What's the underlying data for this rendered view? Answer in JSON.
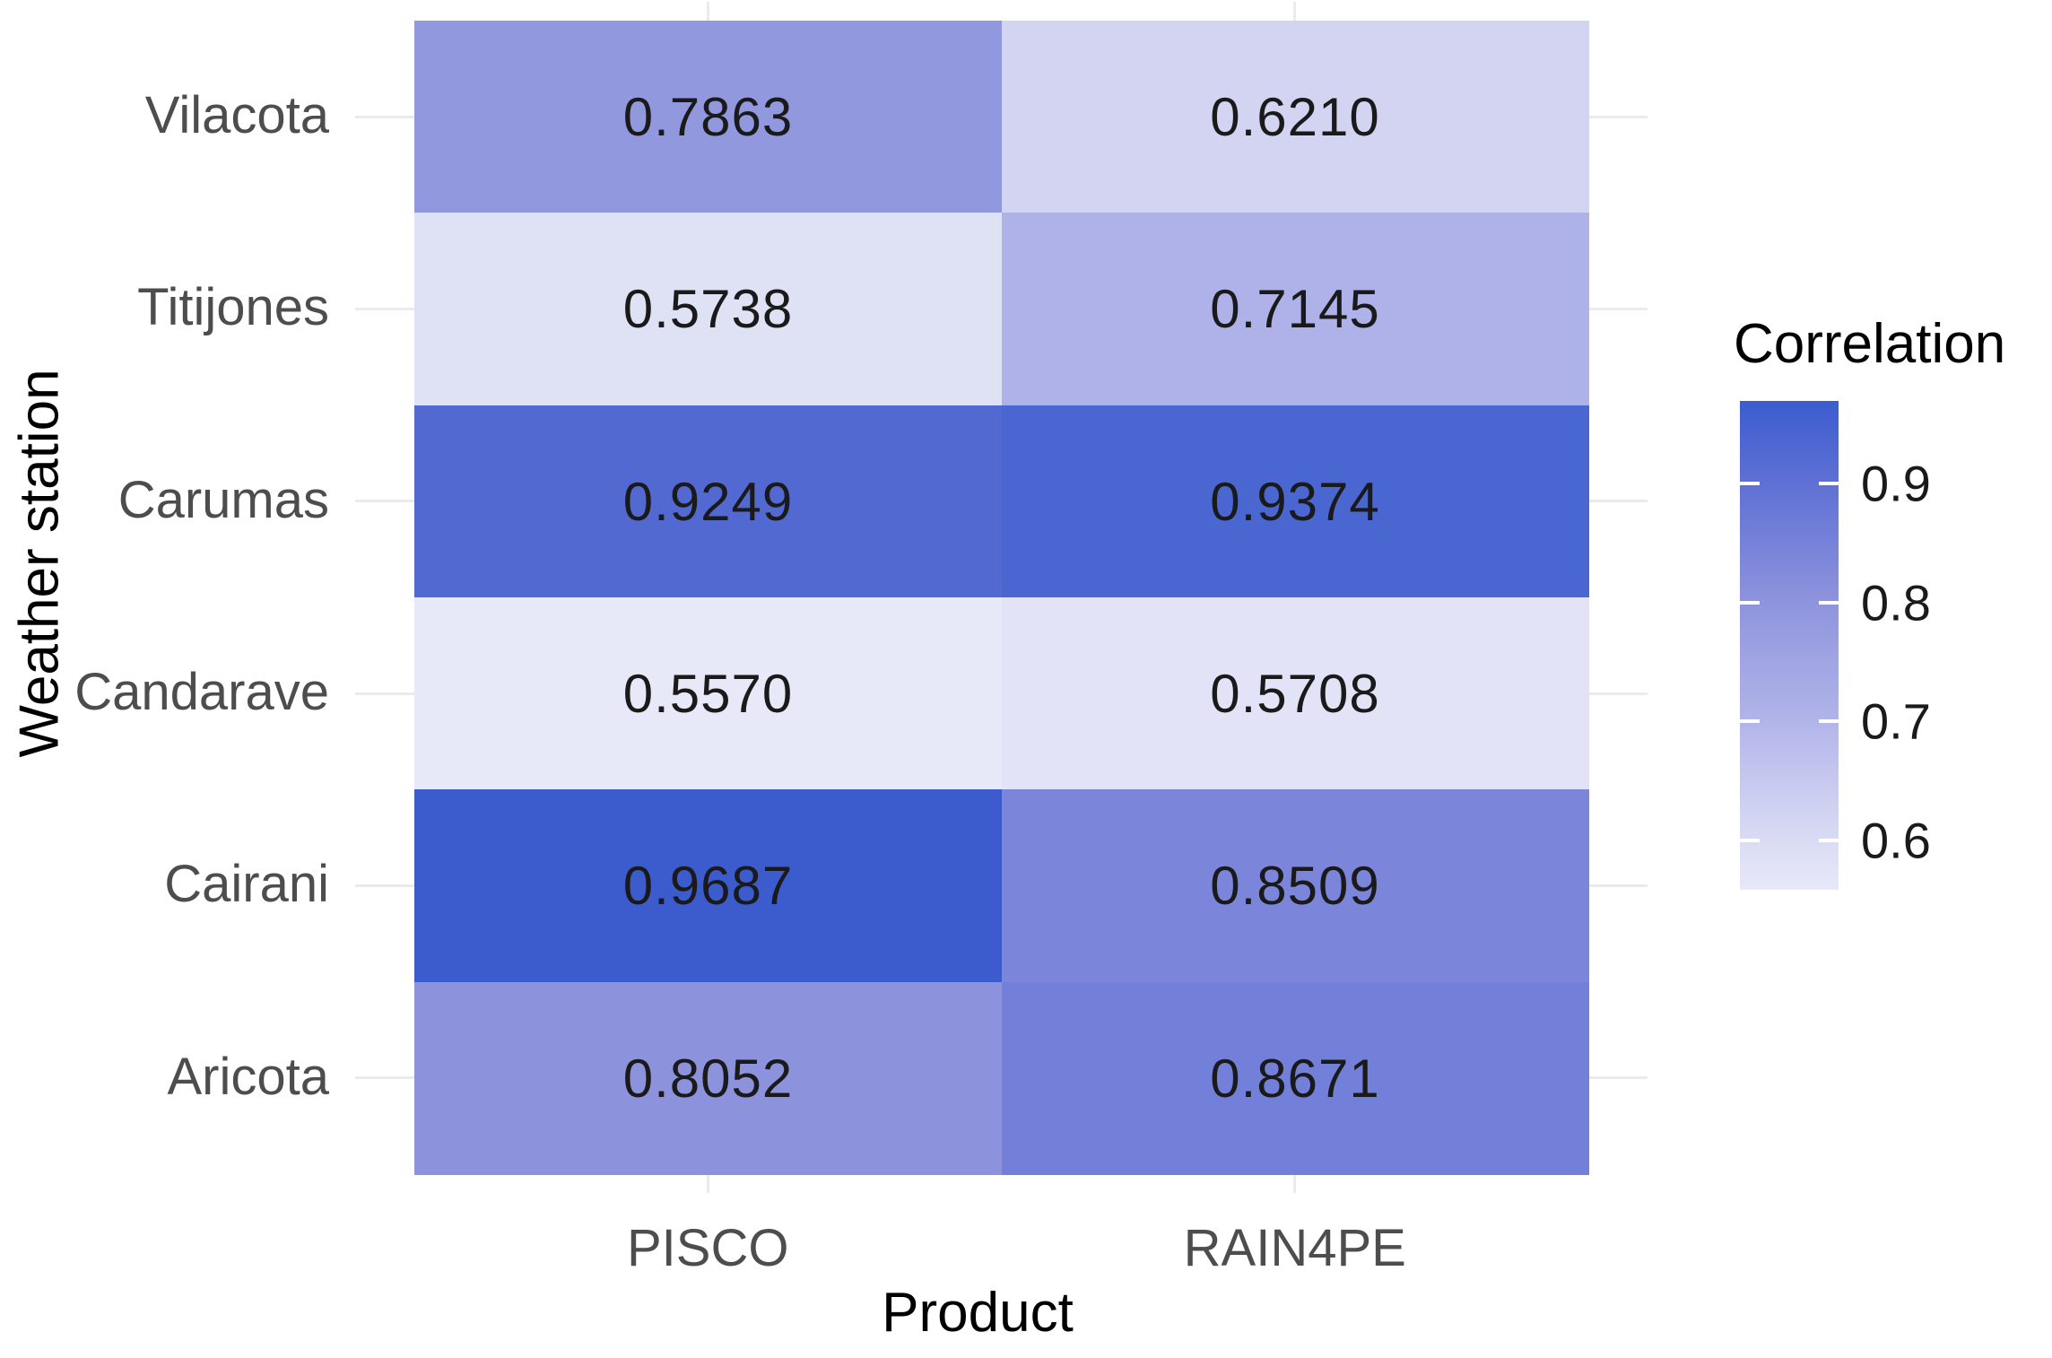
{
  "chart_data": {
    "type": "heatmap",
    "title": "",
    "xlabel": "Product",
    "ylabel": "Weather station",
    "columns": [
      "PISCO",
      "RAIN4PE"
    ],
    "rows": [
      "Vilacota",
      "Titijones",
      "Carumas",
      "Candarave",
      "Cairani",
      "Aricota"
    ],
    "values": [
      [
        0.7863,
        0.621
      ],
      [
        0.5738,
        0.7145
      ],
      [
        0.9249,
        0.9374
      ],
      [
        0.557,
        0.5708
      ],
      [
        0.9687,
        0.8509
      ],
      [
        0.8052,
        0.8671
      ]
    ],
    "value_decimals": 4,
    "cell_colors": [
      [
        "#9298DE",
        "#D2D4F1"
      ],
      [
        "#DFE1F5",
        "#AFB2E8"
      ],
      [
        "#5269D2",
        "#4A67D1"
      ],
      [
        "#E7E8F8",
        "#E2E3F6"
      ],
      [
        "#3C5CCE",
        "#7B86DB"
      ],
      [
        "#8C92DC",
        "#7380D9"
      ]
    ],
    "legend": {
      "title": "Correlation",
      "position": "right",
      "tick_labels": [
        "0.9",
        "0.8",
        "0.7",
        "0.6"
      ],
      "tick_values": [
        0.9,
        0.8,
        0.7,
        0.6
      ],
      "domain": [
        0.5586,
        0.9693
      ],
      "gradient_low": "#E7E8F8",
      "gradient_high": "#3C5CCE"
    },
    "layout": {
      "grid": "on",
      "grid_color": "#EBEBEB",
      "axis_text_color": "#4D4D4D",
      "title_text_color": "#000000",
      "value_text_color": "#1A1A1A",
      "background": "#FFFFFF"
    }
  }
}
